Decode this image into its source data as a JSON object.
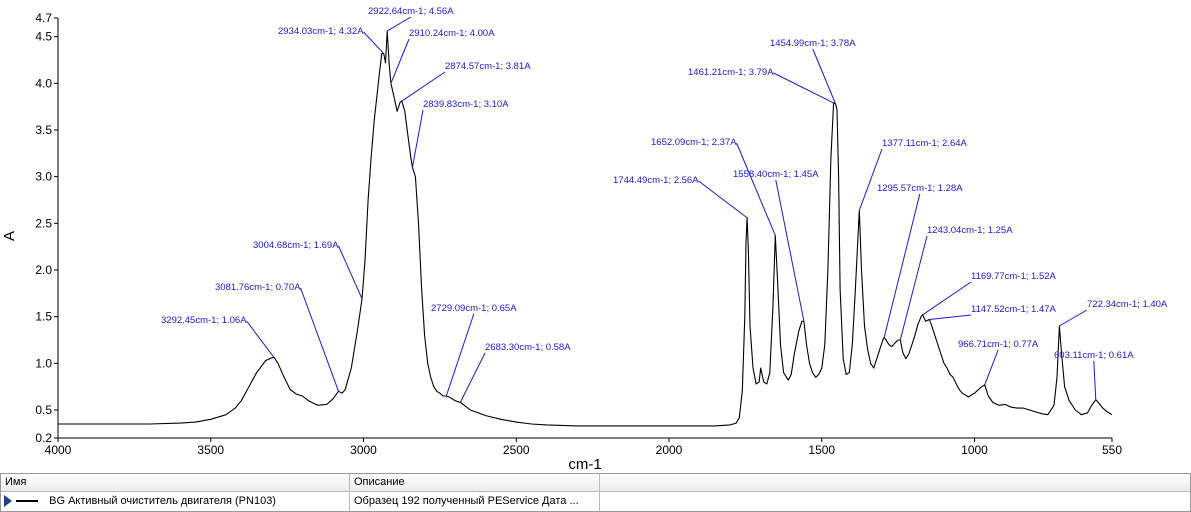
{
  "chart_data": {
    "type": "line",
    "title": "",
    "xlabel": "cm-1",
    "ylabel": "A",
    "xlim": [
      4000,
      550
    ],
    "x_reversed": true,
    "ylim": [
      0.2,
      4.7
    ],
    "grid": false,
    "x_ticks": [
      4000,
      3500,
      3000,
      2500,
      2000,
      1500,
      1000,
      550
    ],
    "x_tick_labels": [
      "4000",
      "3500",
      "3000",
      "2500",
      "2000",
      "1500",
      "1000",
      "550"
    ],
    "y_ticks": [
      0.2,
      0.5,
      1.0,
      1.5,
      2.0,
      2.5,
      3.0,
      3.5,
      4.0,
      4.5,
      4.7
    ],
    "y_tick_labels": [
      "0.2",
      "0.5",
      "1.0",
      "1.5",
      "2.0",
      "2.5",
      "3.0",
      "3.5",
      "4.0",
      "4.5",
      "4.7"
    ],
    "line_color": "#000000",
    "annotation_color": "#1a1ad6",
    "series": [
      {
        "x": [
          4000,
          3900,
          3800,
          3700,
          3600,
          3550,
          3500,
          3450,
          3420,
          3400,
          3380,
          3350,
          3320,
          3300,
          3292,
          3280,
          3260,
          3240,
          3220,
          3200,
          3180,
          3150,
          3120,
          3100,
          3082,
          3070,
          3060,
          3040,
          3020,
          3005,
          2995,
          2985,
          2975,
          2965,
          2950,
          2940,
          2934,
          2928,
          2922.6,
          2916,
          2910.2,
          2900,
          2890,
          2880,
          2874.6,
          2865,
          2855,
          2845,
          2839.8,
          2830,
          2820,
          2810,
          2800,
          2790,
          2780,
          2770,
          2760,
          2750,
          2740,
          2729,
          2720,
          2700,
          2683,
          2670,
          2650,
          2600,
          2550,
          2500,
          2450,
          2400,
          2300,
          2200,
          2100,
          2050,
          2000,
          1950,
          1900,
          1850,
          1800,
          1780,
          1770,
          1760,
          1752,
          1748,
          1744.5,
          1740,
          1735,
          1725,
          1715,
          1705,
          1700,
          1690,
          1680,
          1670,
          1660,
          1652.1,
          1645,
          1635,
          1625,
          1610,
          1600,
          1590,
          1575,
          1565,
          1558.4,
          1550,
          1540,
          1530,
          1520,
          1510,
          1500,
          1490,
          1480,
          1470,
          1461.2,
          1455,
          1450,
          1445,
          1440,
          1430,
          1420,
          1410,
          1400,
          1390,
          1377.1,
          1370,
          1360,
          1350,
          1340,
          1330,
          1320,
          1310,
          1300,
          1295.6,
          1280,
          1270,
          1260,
          1250,
          1243,
          1235,
          1225,
          1215,
          1205,
          1195,
          1185,
          1175,
          1169.8,
          1160,
          1147.5,
          1140,
          1130,
          1120,
          1110,
          1100,
          1090,
          1080,
          1070,
          1060,
          1050,
          1040,
          1020,
          1000,
          980,
          966.7,
          955,
          940,
          920,
          900,
          880,
          860,
          840,
          820,
          800,
          780,
          760,
          740,
          730,
          722.3,
          715,
          705,
          690,
          670,
          650,
          630,
          620,
          610,
          603.1,
          595,
          580,
          565,
          550
        ],
        "y": [
          0.35,
          0.35,
          0.35,
          0.35,
          0.36,
          0.37,
          0.4,
          0.45,
          0.52,
          0.6,
          0.72,
          0.9,
          1.03,
          1.06,
          1.06,
          1.0,
          0.85,
          0.72,
          0.67,
          0.65,
          0.6,
          0.55,
          0.56,
          0.62,
          0.7,
          0.68,
          0.72,
          0.95,
          1.35,
          1.69,
          2.1,
          2.75,
          3.2,
          3.6,
          4.05,
          4.32,
          4.32,
          4.22,
          4.56,
          4.2,
          4.0,
          3.85,
          3.7,
          3.8,
          3.81,
          3.7,
          3.45,
          3.2,
          3.1,
          3.0,
          2.5,
          1.8,
          1.3,
          1.0,
          0.85,
          0.75,
          0.7,
          0.68,
          0.65,
          0.65,
          0.64,
          0.6,
          0.58,
          0.55,
          0.5,
          0.44,
          0.4,
          0.37,
          0.35,
          0.34,
          0.33,
          0.33,
          0.33,
          0.33,
          0.33,
          0.33,
          0.33,
          0.33,
          0.34,
          0.36,
          0.42,
          0.7,
          1.5,
          2.3,
          2.56,
          2.2,
          1.4,
          0.95,
          0.78,
          0.8,
          0.95,
          0.8,
          0.78,
          0.9,
          1.6,
          2.37,
          1.9,
          1.2,
          0.9,
          0.82,
          0.88,
          1.1,
          1.35,
          1.45,
          1.45,
          1.2,
          1.0,
          0.9,
          0.85,
          0.88,
          0.95,
          1.2,
          2.0,
          3.2,
          3.79,
          3.78,
          3.72,
          3.0,
          1.8,
          1.05,
          0.88,
          0.9,
          1.2,
          1.8,
          2.64,
          2.0,
          1.4,
          1.15,
          1.0,
          0.95,
          1.05,
          1.15,
          1.25,
          1.28,
          1.2,
          1.18,
          1.22,
          1.25,
          1.25,
          1.12,
          1.05,
          1.1,
          1.2,
          1.3,
          1.42,
          1.5,
          1.52,
          1.45,
          1.47,
          1.4,
          1.3,
          1.2,
          1.1,
          1.0,
          0.95,
          0.88,
          0.85,
          0.78,
          0.72,
          0.68,
          0.64,
          0.68,
          0.74,
          0.77,
          0.65,
          0.58,
          0.55,
          0.56,
          0.53,
          0.52,
          0.52,
          0.5,
          0.48,
          0.46,
          0.45,
          0.55,
          0.85,
          1.4,
          1.1,
          0.75,
          0.6,
          0.5,
          0.45,
          0.47,
          0.53,
          0.58,
          0.61,
          0.58,
          0.52,
          0.48,
          0.45
        ]
      }
    ],
    "annotations": [
      {
        "label": "2922.64cm-1; 4.56A",
        "x": 2922.64,
        "y": 4.56
      },
      {
        "label": "2934.03cm-1; 4.32A",
        "x": 2934.03,
        "y": 4.32
      },
      {
        "label": "2910.24cm-1; 4.00A",
        "x": 2910.24,
        "y": 4.0
      },
      {
        "label": "2874.57cm-1; 3.81A",
        "x": 2874.57,
        "y": 3.81
      },
      {
        "label": "2839.83cm-1; 3.10A",
        "x": 2839.83,
        "y": 3.1
      },
      {
        "label": "3004.68cm-1; 1.69A",
        "x": 3004.68,
        "y": 1.69
      },
      {
        "label": "3081.76cm-1; 0.70A",
        "x": 3081.76,
        "y": 0.7
      },
      {
        "label": "3292.45cm-1; 1.06A",
        "x": 3292.45,
        "y": 1.06
      },
      {
        "label": "2729.09cm-1; 0.65A",
        "x": 2729.09,
        "y": 0.65
      },
      {
        "label": "2683.30cm-1; 0.58A",
        "x": 2683.3,
        "y": 0.58
      },
      {
        "label": "1454.99cm-1; 3.78A",
        "x": 1454.99,
        "y": 3.78
      },
      {
        "label": "1461.21cm-1; 3.79A",
        "x": 1461.21,
        "y": 3.79
      },
      {
        "label": "1652.09cm-1; 2.37A",
        "x": 1652.09,
        "y": 2.37
      },
      {
        "label": "1744.49cm-1; 2.56A",
        "x": 1744.49,
        "y": 2.56
      },
      {
        "label": "1558.40cm-1; 1.45A",
        "x": 1558.4,
        "y": 1.45
      },
      {
        "label": "1377.11cm-1; 2.64A",
        "x": 1377.11,
        "y": 2.64
      },
      {
        "label": "1295.57cm-1; 1.28A",
        "x": 1295.57,
        "y": 1.28
      },
      {
        "label": "1243.04cm-1; 1.25A",
        "x": 1243.04,
        "y": 1.25
      },
      {
        "label": "1169.77cm-1; 1.52A",
        "x": 1169.77,
        "y": 1.52
      },
      {
        "label": "1147.52cm-1; 1.47A",
        "x": 1147.52,
        "y": 1.47
      },
      {
        "label": "966.71cm-1; 0.77A",
        "x": 966.71,
        "y": 0.77
      },
      {
        "label": "722.34cm-1; 1.40A",
        "x": 722.34,
        "y": 1.4
      },
      {
        "label": "603.11cm-1; 0.61A",
        "x": 603.11,
        "y": 0.61
      }
    ]
  },
  "legend_table": {
    "header": {
      "name": "Имя",
      "description": "Описание"
    },
    "rows": [
      {
        "name": "BG Активный очиститель двигателя (PN103)",
        "description": "Образец 192 полученный PEService Дата ..."
      }
    ]
  }
}
